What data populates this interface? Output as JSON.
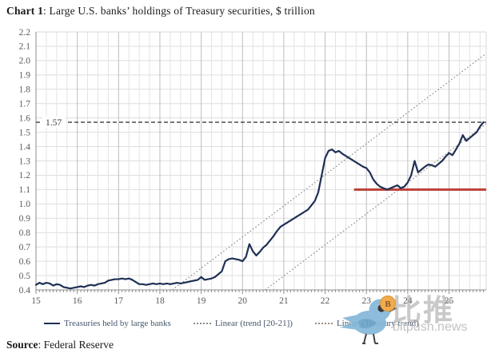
{
  "title": {
    "prefix": "Chart 1",
    "rest": ": Large U.S. banks’ holdings of Treasury securities, $ trillion"
  },
  "source": {
    "prefix": "Source",
    "rest": ": Federal Reserve"
  },
  "watermark": {
    "cn_text": "比推",
    "site": "bitpush.news",
    "bird_color": "#85b7d9",
    "wing_color": "#6aa3c8",
    "coin_color": "#f0a33f",
    "coin_symbol": "B"
  },
  "chart_data": {
    "type": "line",
    "title": "Large U.S. banks' holdings of Treasury securities, $ trillion",
    "xlabel": "",
    "ylabel": "",
    "xlim": [
      15,
      25.9
    ],
    "ylim": [
      0.4,
      2.2
    ],
    "ytick_step": 0.1,
    "xticks": [
      15,
      16,
      17,
      18,
      19,
      20,
      21,
      22,
      23,
      24,
      25
    ],
    "grid": true,
    "legend_position": "bottom",
    "series": [
      {
        "name": "Treasuries held by large banks",
        "style": "solid",
        "color": "#1e3054",
        "width": 2.2,
        "x": [
          15.0,
          15.083,
          15.167,
          15.25,
          15.333,
          15.417,
          15.5,
          15.583,
          15.667,
          15.75,
          15.833,
          15.917,
          16.0,
          16.083,
          16.167,
          16.25,
          16.333,
          16.417,
          16.5,
          16.583,
          16.667,
          16.75,
          16.833,
          16.917,
          17.0,
          17.083,
          17.167,
          17.25,
          17.333,
          17.417,
          17.5,
          17.583,
          17.667,
          17.75,
          17.833,
          17.917,
          18.0,
          18.083,
          18.167,
          18.25,
          18.333,
          18.417,
          18.5,
          18.583,
          18.667,
          18.75,
          18.833,
          18.917,
          19.0,
          19.083,
          19.167,
          19.25,
          19.333,
          19.417,
          19.5,
          19.583,
          19.667,
          19.75,
          19.833,
          19.917,
          20.0,
          20.083,
          20.167,
          20.25,
          20.333,
          20.417,
          20.5,
          20.583,
          20.667,
          20.75,
          20.833,
          20.917,
          21.0,
          21.083,
          21.167,
          21.25,
          21.333,
          21.417,
          21.5,
          21.583,
          21.667,
          21.75,
          21.833,
          21.917,
          22.0,
          22.083,
          22.167,
          22.25,
          22.333,
          22.417,
          22.5,
          22.583,
          22.667,
          22.75,
          22.833,
          22.917,
          23.0,
          23.083,
          23.167,
          23.25,
          23.333,
          23.417,
          23.5,
          23.583,
          23.667,
          23.75,
          23.833,
          23.917,
          24.0,
          24.083,
          24.167,
          24.25,
          24.333,
          24.417,
          24.5,
          24.583,
          24.667,
          24.75,
          24.833,
          24.917,
          25.0,
          25.083,
          25.167,
          25.25,
          25.333,
          25.417,
          25.5,
          25.583,
          25.667,
          25.75,
          25.833
        ],
        "y": [
          0.435,
          0.45,
          0.44,
          0.45,
          0.445,
          0.43,
          0.44,
          0.435,
          0.42,
          0.415,
          0.41,
          0.415,
          0.42,
          0.425,
          0.42,
          0.43,
          0.435,
          0.43,
          0.44,
          0.445,
          0.45,
          0.465,
          0.47,
          0.475,
          0.475,
          0.48,
          0.475,
          0.48,
          0.47,
          0.455,
          0.44,
          0.44,
          0.435,
          0.44,
          0.445,
          0.44,
          0.445,
          0.44,
          0.445,
          0.44,
          0.445,
          0.45,
          0.445,
          0.45,
          0.455,
          0.46,
          0.465,
          0.47,
          0.49,
          0.47,
          0.475,
          0.48,
          0.49,
          0.51,
          0.53,
          0.6,
          0.615,
          0.62,
          0.615,
          0.61,
          0.6,
          0.63,
          0.72,
          0.67,
          0.64,
          0.665,
          0.695,
          0.715,
          0.745,
          0.775,
          0.81,
          0.84,
          0.855,
          0.87,
          0.885,
          0.9,
          0.915,
          0.93,
          0.945,
          0.96,
          0.99,
          1.02,
          1.08,
          1.2,
          1.32,
          1.37,
          1.38,
          1.36,
          1.37,
          1.35,
          1.335,
          1.32,
          1.305,
          1.29,
          1.275,
          1.26,
          1.25,
          1.22,
          1.17,
          1.14,
          1.12,
          1.11,
          1.1,
          1.11,
          1.12,
          1.13,
          1.11,
          1.12,
          1.15,
          1.2,
          1.3,
          1.22,
          1.24,
          1.26,
          1.275,
          1.27,
          1.26,
          1.28,
          1.3,
          1.33,
          1.355,
          1.34,
          1.38,
          1.42,
          1.48,
          1.44,
          1.46,
          1.48,
          1.5,
          1.54,
          1.57
        ]
      },
      {
        "name": "Linear (trend [20-21])",
        "style": "dotted",
        "color": "#8c8c8c",
        "width": 1.2,
        "x": [
          18.3,
          25.9
        ],
        "y": [
          0.4,
          2.05
        ]
      },
      {
        "name": "Linear (Treasury trend)",
        "style": "dotted",
        "color": "#9a8c7e",
        "width": 1.2,
        "x": [
          20.55,
          25.9
        ],
        "y": [
          0.4,
          1.56
        ]
      }
    ],
    "reference_lines": [
      {
        "id": "level-1-57",
        "label": "1.57",
        "value": 1.57,
        "style": "dashed",
        "color": "#3f3f3f",
        "width": 1.4,
        "span": [
          15,
          25.9
        ]
      },
      {
        "id": "support-1-10",
        "label": "",
        "value": 1.1,
        "style": "solid",
        "color": "#bc4138",
        "width": 3,
        "span": [
          22.7,
          25.9
        ]
      }
    ]
  }
}
